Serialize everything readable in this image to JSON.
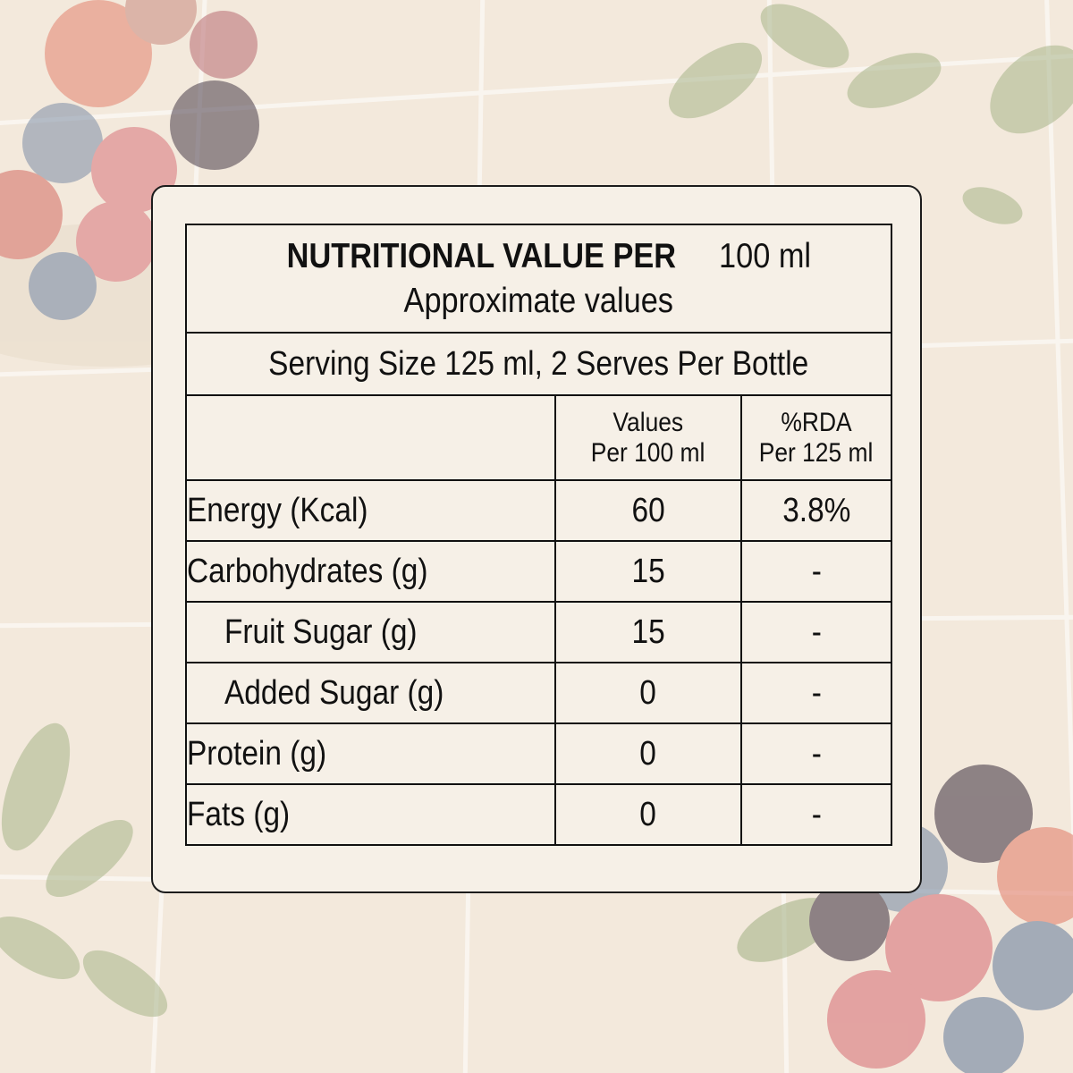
{
  "label": {
    "title_bold": "NUTRITIONAL VALUE PER",
    "title_unit": "100 ml",
    "subtitle": "Approximate values",
    "serving": "Serving Size 125 ml, 2 Serves Per Bottle",
    "col_values_1": "Values",
    "col_values_2": "Per 100 ml",
    "col_rda_1": "%RDA",
    "col_rda_2": "Per 125 ml",
    "rows": [
      {
        "name": "Energy (Kcal)",
        "value": "60",
        "rda": "3.8%"
      },
      {
        "name": "Carbohydrates (g)",
        "value": "15",
        "rda": "-"
      },
      {
        "name": "Fruit Sugar (g)",
        "value": "15",
        "rda": "-"
      },
      {
        "name": "Added Sugar (g)",
        "value": "0",
        "rda": "-"
      },
      {
        "name": "Protein (g)",
        "value": "0",
        "rda": "-"
      },
      {
        "name": "Fats (g)",
        "value": "0",
        "rda": "-"
      }
    ]
  },
  "colors": {
    "background": "#f3e9dc",
    "card": "#f6f0e7",
    "ink": "#111111"
  }
}
